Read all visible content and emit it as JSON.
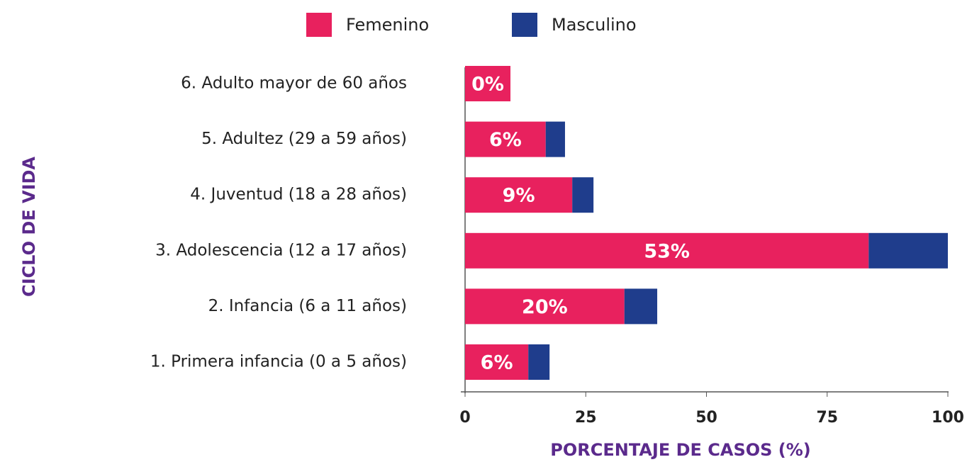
{
  "chart_data": {
    "type": "stacked_barh",
    "xlabel": "PORCENTAJE DE CASOS (%)",
    "ylabel": "CICLO DE VIDA",
    "categories": [
      "1. Primera infancia (0 a 5 años)",
      "2. Infancia (6 a 11 años)",
      "3. Adolescencia (12 a 17 años)",
      "4. Juventud (18 a 28 años)",
      "5. Adultez (29 a 59 años)",
      "6. Adulto mayor de 60 años"
    ],
    "series": [
      {
        "name": "Femenino",
        "color": "#e8215e",
        "values": [
          13.1,
          33.0,
          83.6,
          22.2,
          16.7,
          9.4
        ]
      },
      {
        "name": "Masculino",
        "color": "#1f3d8c",
        "values": [
          4.4,
          6.8,
          16.4,
          4.4,
          4.0,
          0
        ]
      }
    ],
    "bar_labels": [
      "6%",
      "20%",
      "53%",
      "9%",
      "6%",
      "0%"
    ],
    "xlim": [
      0,
      100
    ],
    "xticks": [
      0,
      25,
      50,
      75,
      100
    ],
    "legend": "top"
  }
}
